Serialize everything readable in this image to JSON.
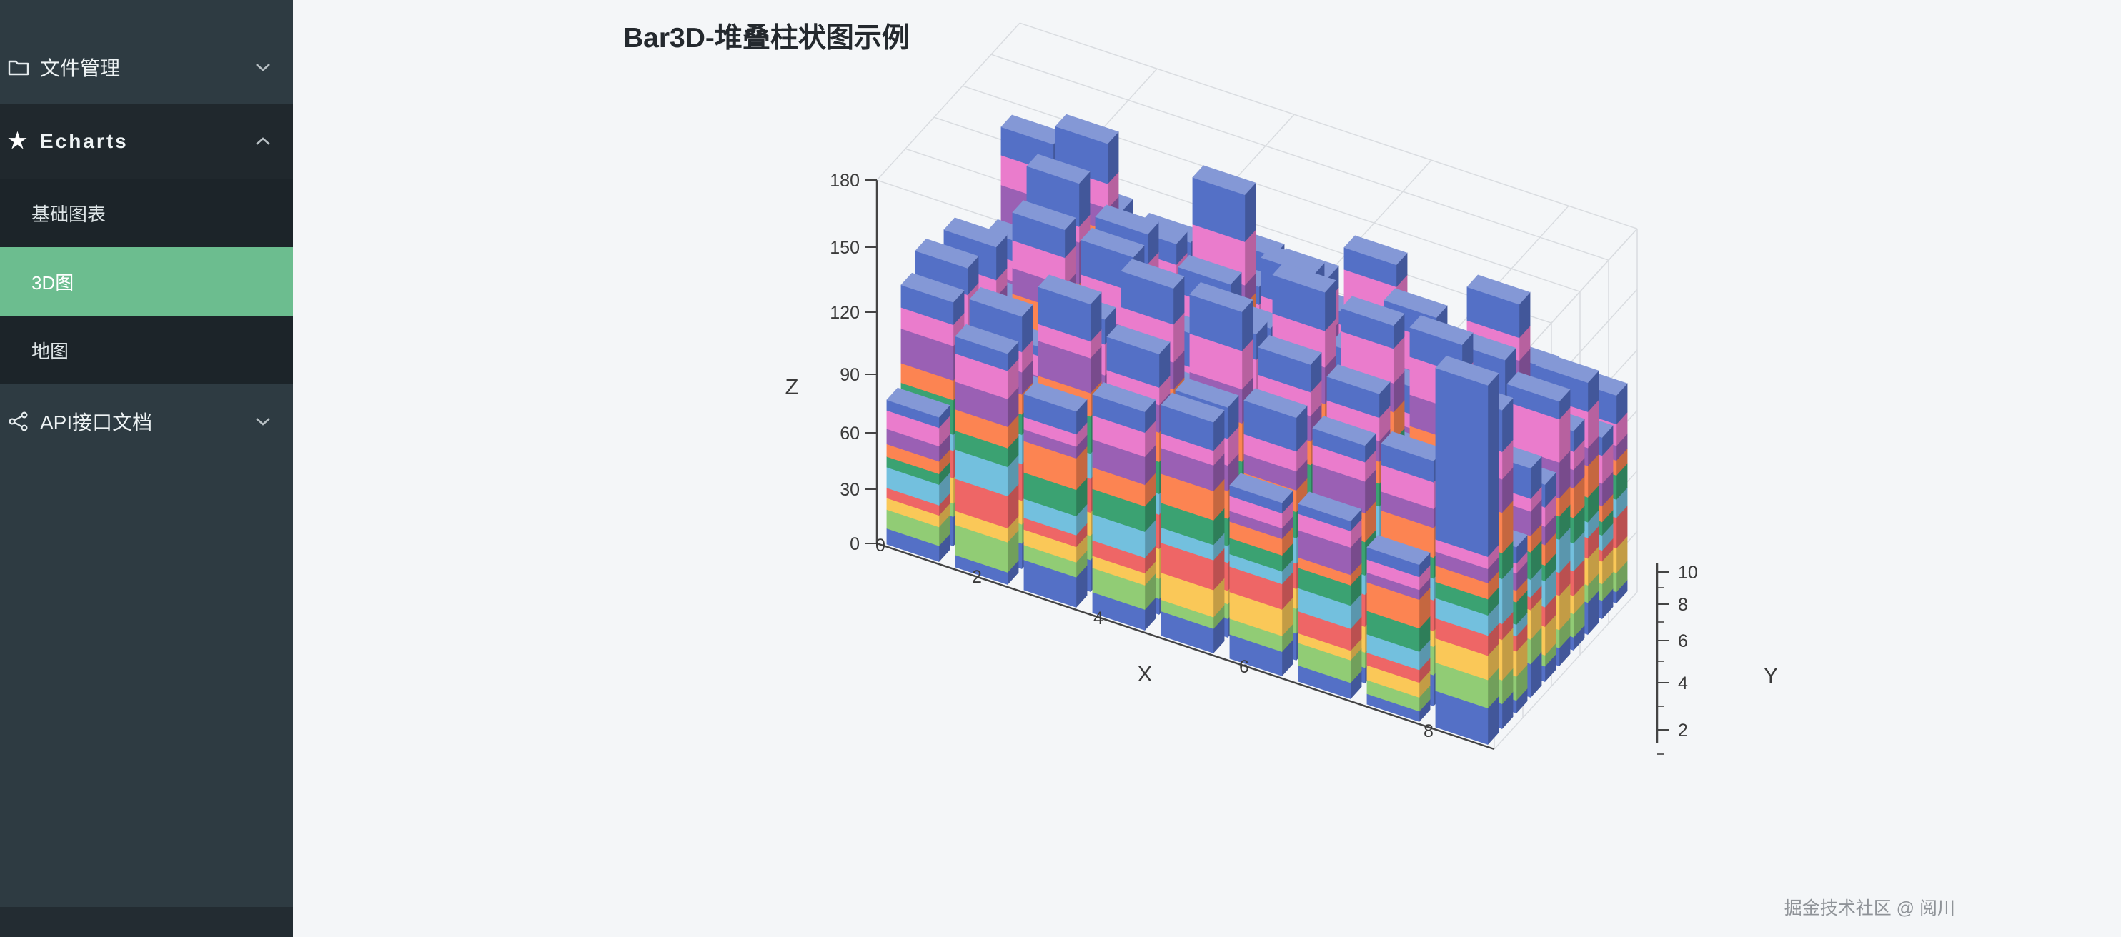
{
  "sidebar": {
    "items": [
      {
        "label": "文件管理",
        "icon": "folder-icon",
        "expanded": false
      },
      {
        "label": "Echarts",
        "icon": "star-icon",
        "expanded": true,
        "children": [
          {
            "label": "基础图表",
            "active": false
          },
          {
            "label": "3D图",
            "active": true
          },
          {
            "label": "地图",
            "active": false
          }
        ]
      },
      {
        "label": "API接口文档",
        "icon": "api-icon",
        "expanded": false
      }
    ]
  },
  "header": {
    "title": "Bar3D-堆叠柱状图示例"
  },
  "icons": {
    "echarts_glyph": "★"
  },
  "footer": {
    "watermark": "掘金技术社区 @ 阅川"
  },
  "colors": {
    "sidebar_bg": "#2e3b42",
    "sidebar_dark": "#20282d",
    "submenu_bg": "#1c2429",
    "active_green": "#6cbd8f",
    "main_bg": "#f4f6f8",
    "axis": "#3a3a3a",
    "grid": "#d9dce0"
  },
  "chart_data": {
    "type": "bar3d",
    "title": "Bar3D-堆叠柱状图示例",
    "xlabel": "X",
    "ylabel": "Y",
    "zlabel": "Z",
    "x_ticks": [
      "0",
      "2",
      "4",
      "6",
      "8"
    ],
    "y_ticks": [
      "2",
      "4",
      "6",
      "8",
      "10"
    ],
    "z_ticks": [
      "0",
      "30",
      "60",
      "90",
      "120",
      "150",
      "180"
    ],
    "x_range": [
      0,
      9
    ],
    "y_range": [
      0,
      10
    ],
    "z_range": [
      0,
      180
    ],
    "grid": true,
    "legend": false,
    "stacked": true,
    "series_count": 10,
    "palette_bottom_to_top": [
      "#5470c6",
      "#91cc75",
      "#fac858",
      "#ee6666",
      "#73c0de",
      "#3ba272",
      "#fc8452",
      "#9a60b4",
      "#ea7ccc",
      "#5470c6"
    ],
    "bars": {
      "cols": 9,
      "rows": 10,
      "seed": 1337,
      "segment_min": 8,
      "segment_max": 24,
      "scale_min": 0.5,
      "scale_max": 1.0,
      "max_total": 180,
      "highlight": {
        "col": 8,
        "row": 0,
        "segments": [
          18,
          14,
          12,
          10,
          10,
          8,
          8,
          7,
          6,
          85
        ]
      }
    }
  }
}
